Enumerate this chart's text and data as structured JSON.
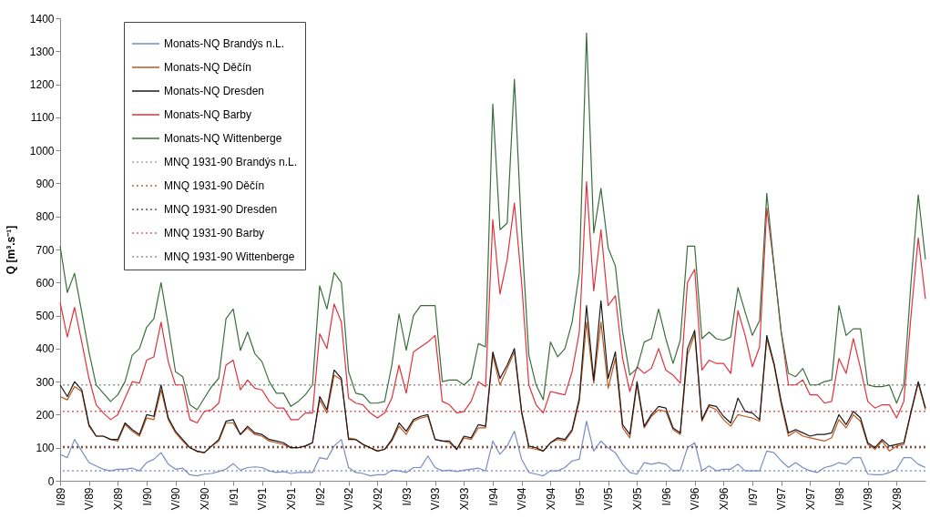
{
  "chart_data": {
    "type": "line",
    "ylabel": "Q [m³.s⁻¹]",
    "categories": [
      "I/89",
      null,
      null,
      null,
      "V/89",
      null,
      null,
      null,
      "X/89",
      null,
      null,
      null,
      "I/90",
      null,
      null,
      null,
      "V/90",
      null,
      null,
      null,
      "X/90",
      null,
      null,
      null,
      "I/91",
      null,
      null,
      null,
      "V/91",
      null,
      null,
      null,
      "X/91",
      null,
      null,
      null,
      "I/92",
      null,
      null,
      null,
      "V/92",
      null,
      null,
      null,
      "X/92",
      null,
      null,
      null,
      "I/93",
      null,
      null,
      null,
      "V/93",
      null,
      null,
      null,
      "X/93",
      null,
      null,
      null,
      "I/94",
      null,
      null,
      null,
      "V/94",
      null,
      null,
      null,
      "X/94",
      null,
      null,
      null,
      "I/95",
      null,
      null,
      null,
      "V/95",
      null,
      null,
      null,
      "X/95",
      null,
      null,
      null,
      "I/96",
      null,
      null,
      null,
      "V/96",
      null,
      null,
      null,
      "X/96",
      null,
      null,
      null,
      "I/97",
      null,
      null,
      null,
      "V/97",
      null,
      null,
      null,
      "X/97",
      null,
      null,
      null,
      "I/98",
      null,
      null,
      null,
      "V/98",
      null,
      null,
      null,
      "X/98",
      null,
      null,
      null,
      null
    ],
    "series": [
      {
        "name": "Monats-NQ Brandýs n.L.",
        "color": "#7a8cc0",
        "values": [
          80,
          70,
          125,
          90,
          55,
          45,
          35,
          30,
          35,
          35,
          38,
          30,
          55,
          65,
          85,
          50,
          35,
          38,
          18,
          15,
          20,
          22,
          28,
          35,
          52,
          32,
          40,
          42,
          40,
          30,
          25,
          28,
          22,
          25,
          25,
          25,
          70,
          65,
          105,
          125,
          40,
          25,
          22,
          15,
          18,
          18,
          32,
          30,
          25,
          40,
          40,
          75,
          40,
          30,
          32,
          28,
          32,
          35,
          38,
          30,
          120,
          80,
          105,
          150,
          65,
          25,
          20,
          15,
          30,
          30,
          40,
          60,
          65,
          180,
          90,
          120,
          100,
          85,
          50,
          25,
          20,
          55,
          50,
          55,
          50,
          30,
          32,
          100,
          115,
          30,
          45,
          30,
          35,
          35,
          50,
          30,
          30,
          30,
          90,
          85,
          60,
          40,
          55,
          40,
          30,
          25,
          40,
          45,
          55,
          50,
          70,
          70,
          20,
          18,
          18,
          25,
          35,
          70,
          70,
          50,
          40
        ]
      },
      {
        "name": "Monats-NQ Děčín",
        "color": "#c0561e",
        "values": [
          255,
          245,
          285,
          270,
          165,
          135,
          135,
          125,
          120,
          170,
          150,
          135,
          190,
          185,
          275,
          185,
          145,
          120,
          100,
          88,
          85,
          105,
          120,
          175,
          175,
          140,
          160,
          140,
          135,
          120,
          115,
          110,
          100,
          100,
          105,
          115,
          245,
          205,
          320,
          305,
          130,
          125,
          110,
          100,
          90,
          95,
          120,
          165,
          140,
          180,
          190,
          195,
          125,
          120,
          115,
          95,
          130,
          125,
          160,
          160,
          380,
          290,
          340,
          390,
          205,
          100,
          95,
          90,
          115,
          125,
          120,
          150,
          240,
          480,
          295,
          480,
          280,
          370,
          160,
          130,
          290,
          160,
          195,
          215,
          210,
          155,
          140,
          380,
          445,
          180,
          225,
          215,
          185,
          165,
          200,
          195,
          190,
          180,
          430,
          350,
          230,
          135,
          150,
          135,
          130,
          125,
          120,
          130,
          185,
          160,
          200,
          180,
          110,
          95,
          120,
          90,
          105,
          110,
          205,
          295,
          215
        ]
      },
      {
        "name": "Monats-NQ Dresden",
        "color": "#1a1a1a",
        "values": [
          290,
          255,
          300,
          275,
          170,
          135,
          135,
          125,
          125,
          175,
          155,
          140,
          200,
          195,
          290,
          190,
          150,
          125,
          100,
          90,
          85,
          105,
          125,
          180,
          185,
          140,
          165,
          145,
          140,
          125,
          120,
          115,
          100,
          100,
          105,
          115,
          255,
          215,
          335,
          310,
          125,
          125,
          110,
          100,
          90,
          95,
          125,
          175,
          150,
          185,
          195,
          200,
          125,
          120,
          120,
          95,
          135,
          130,
          170,
          165,
          390,
          310,
          350,
          400,
          210,
          105,
          100,
          90,
          115,
          130,
          125,
          155,
          250,
          530,
          305,
          545,
          310,
          390,
          170,
          140,
          300,
          165,
          200,
          225,
          220,
          160,
          145,
          400,
          455,
          185,
          230,
          225,
          195,
          175,
          250,
          210,
          205,
          185,
          440,
          355,
          240,
          145,
          155,
          145,
          135,
          140,
          140,
          145,
          200,
          170,
          210,
          190,
          115,
          100,
          125,
          105,
          110,
          115,
          210,
          300,
          220
        ]
      },
      {
        "name": "Monats-NQ Barby",
        "color": "#e0323c",
        "values": [
          540,
          435,
          525,
          420,
          310,
          230,
          205,
          185,
          200,
          250,
          300,
          295,
          365,
          375,
          480,
          360,
          290,
          290,
          185,
          175,
          210,
          215,
          235,
          350,
          365,
          275,
          305,
          280,
          275,
          240,
          220,
          220,
          185,
          185,
          205,
          205,
          445,
          400,
          535,
          480,
          250,
          235,
          230,
          205,
          190,
          205,
          250,
          350,
          265,
          390,
          405,
          420,
          440,
          240,
          230,
          205,
          210,
          240,
          300,
          285,
          790,
          565,
          670,
          840,
          600,
          290,
          230,
          205,
          270,
          265,
          260,
          330,
          450,
          905,
          575,
          760,
          530,
          560,
          370,
          270,
          345,
          325,
          340,
          400,
          335,
          320,
          295,
          600,
          640,
          335,
          365,
          355,
          355,
          325,
          515,
          440,
          345,
          405,
          825,
          650,
          450,
          290,
          290,
          305,
          260,
          260,
          235,
          240,
          370,
          325,
          430,
          340,
          240,
          220,
          230,
          230,
          190,
          240,
          500,
          735,
          550
        ]
      },
      {
        "name": "Monats-NQ Wittenberge",
        "color": "#3c6e3c",
        "values": [
          710,
          570,
          628,
          510,
          390,
          290,
          265,
          240,
          260,
          300,
          380,
          400,
          465,
          490,
          600,
          470,
          330,
          315,
          230,
          215,
          250,
          285,
          310,
          490,
          520,
          395,
          450,
          385,
          360,
          300,
          265,
          265,
          225,
          240,
          260,
          290,
          590,
          520,
          630,
          600,
          330,
          265,
          260,
          235,
          235,
          240,
          350,
          505,
          395,
          500,
          530,
          530,
          530,
          300,
          305,
          305,
          290,
          310,
          415,
          405,
          1140,
          760,
          780,
          1215,
          750,
          380,
          290,
          245,
          420,
          375,
          400,
          480,
          630,
          1355,
          750,
          885,
          705,
          650,
          450,
          320,
          340,
          420,
          430,
          520,
          430,
          355,
          425,
          710,
          710,
          430,
          450,
          430,
          425,
          435,
          585,
          510,
          440,
          485,
          870,
          650,
          450,
          325,
          315,
          340,
          290,
          290,
          300,
          305,
          530,
          440,
          460,
          460,
          290,
          285,
          285,
          290,
          235,
          290,
          600,
          865,
          670
        ]
      }
    ],
    "ref_lines": [
      {
        "axis": "y",
        "value": 30,
        "label": "MNQ 1931-90 Brandýs n.L.",
        "color": "#9aa8d0",
        "line_style": "dotted"
      },
      {
        "axis": "y",
        "value": 100,
        "label": "MNQ 1931-90 Děčín",
        "color": "#c8603a",
        "line_style": "dotted"
      },
      {
        "axis": "y",
        "value": 103,
        "label": "MNQ 1931-90 Dresden",
        "color": "#6a5050",
        "line_style": "dotted"
      },
      {
        "axis": "y",
        "value": 210,
        "label": "MNQ 1931-90 Barby",
        "color": "#e06070",
        "line_style": "dotted"
      },
      {
        "axis": "y",
        "value": 290,
        "label": "MNQ 1931-90 Wittenberge",
        "color": "#8a9a8a",
        "line_style": "dotted"
      }
    ],
    "ylim": [
      0,
      1400
    ],
    "yticks": [
      0,
      100,
      200,
      300,
      400,
      500,
      600,
      700,
      800,
      900,
      1000,
      1100,
      1200,
      1300,
      1400
    ],
    "legend": "top left",
    "line_style": "solid",
    "grid": false
  }
}
